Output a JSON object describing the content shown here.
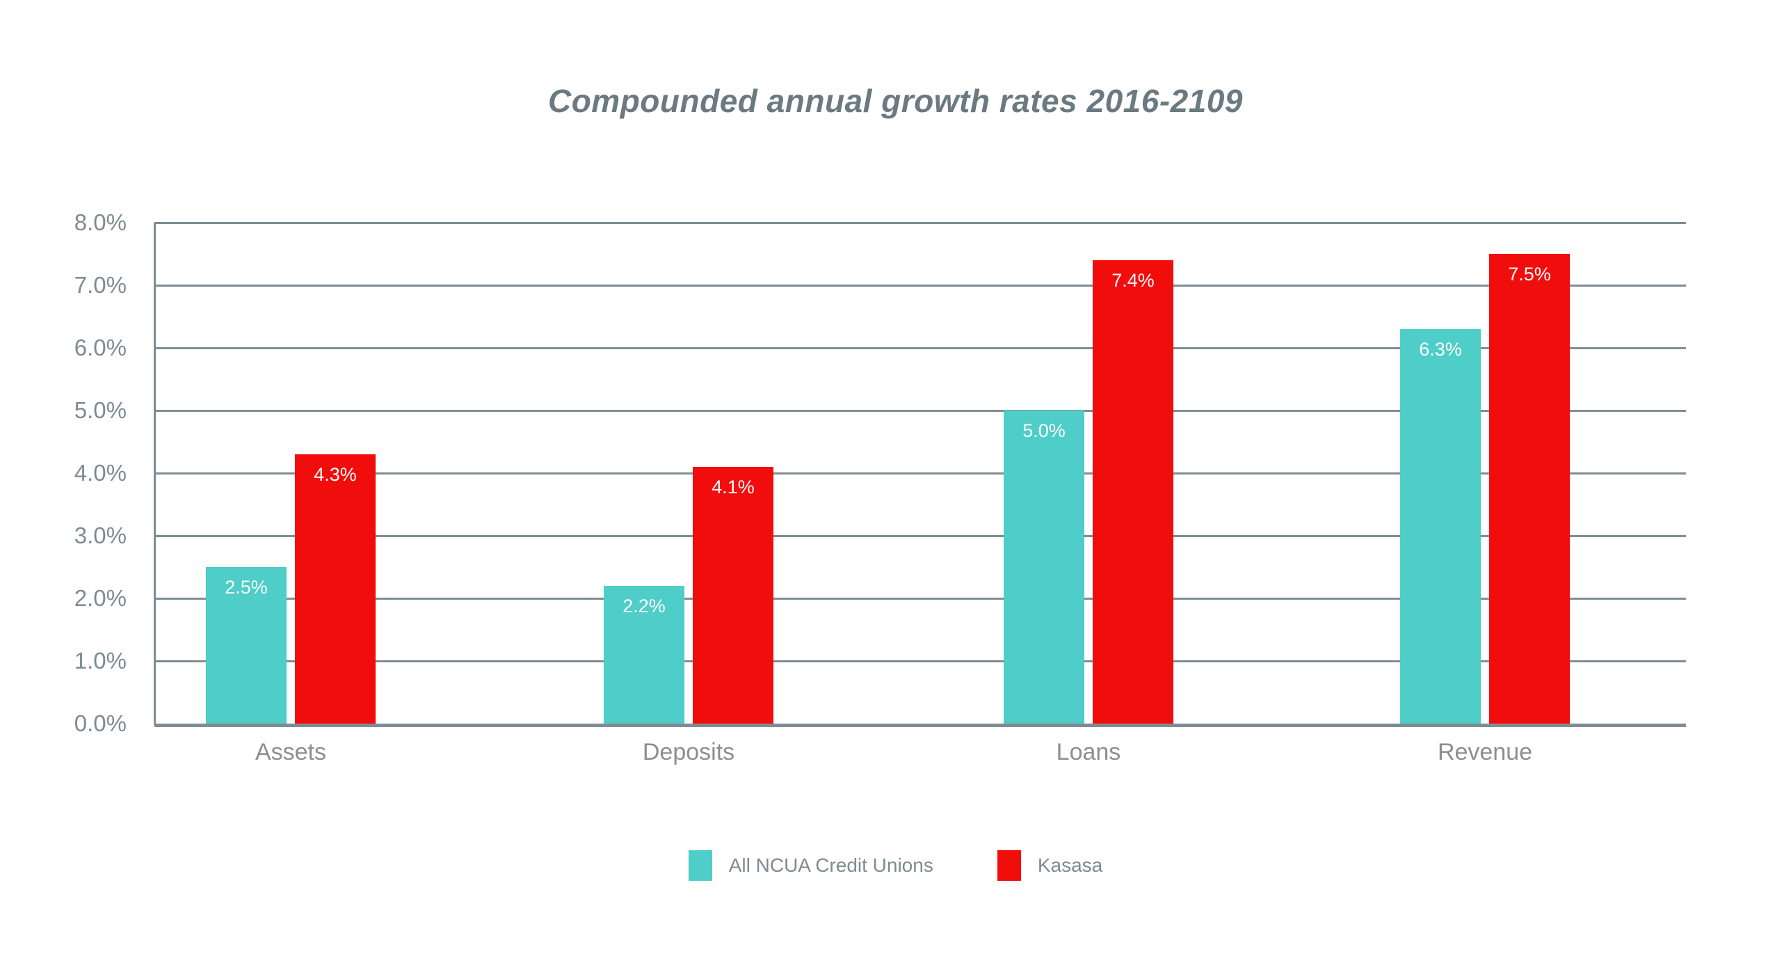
{
  "title": "Compounded annual growth rates 2016-2109",
  "chart_data": {
    "type": "bar",
    "title": "Compounded annual growth rates 2016-2109",
    "categories": [
      "Assets",
      "Deposits",
      "Loans",
      "Revenue"
    ],
    "series": [
      {
        "name": "All NCUA Credit Unions",
        "color": "#4ECDC9",
        "values": [
          2.5,
          2.2,
          5.0,
          6.3
        ],
        "labels": [
          "2.5%",
          "2.2%",
          "5.0%",
          "6.3%"
        ]
      },
      {
        "name": "Kasasa",
        "color": "#F20D0D",
        "values": [
          4.3,
          4.1,
          7.4,
          7.5
        ],
        "labels": [
          "4.3%",
          "4.1%",
          "7.4%",
          "7.5%"
        ]
      }
    ],
    "xlabel": "",
    "ylabel": "",
    "ylim": [
      0,
      8
    ],
    "y_ticks": [
      "8.0%",
      "7.0%",
      "6.0%",
      "5.0%",
      "4.0%",
      "3.0%",
      "2.0%",
      "1.0%",
      "0.0%"
    ],
    "grid": "horizontal",
    "legend_position": "bottom"
  },
  "colors": {
    "series_teal": "#4ECDC9",
    "series_red": "#F20D0D",
    "gridline": "#7E8D95",
    "tick_label": "#7E8B92",
    "category_label": "#8A8F93",
    "title": "#6B7A81",
    "bar_value_label": "#FFFFFF",
    "background": "#FFFFFF"
  }
}
